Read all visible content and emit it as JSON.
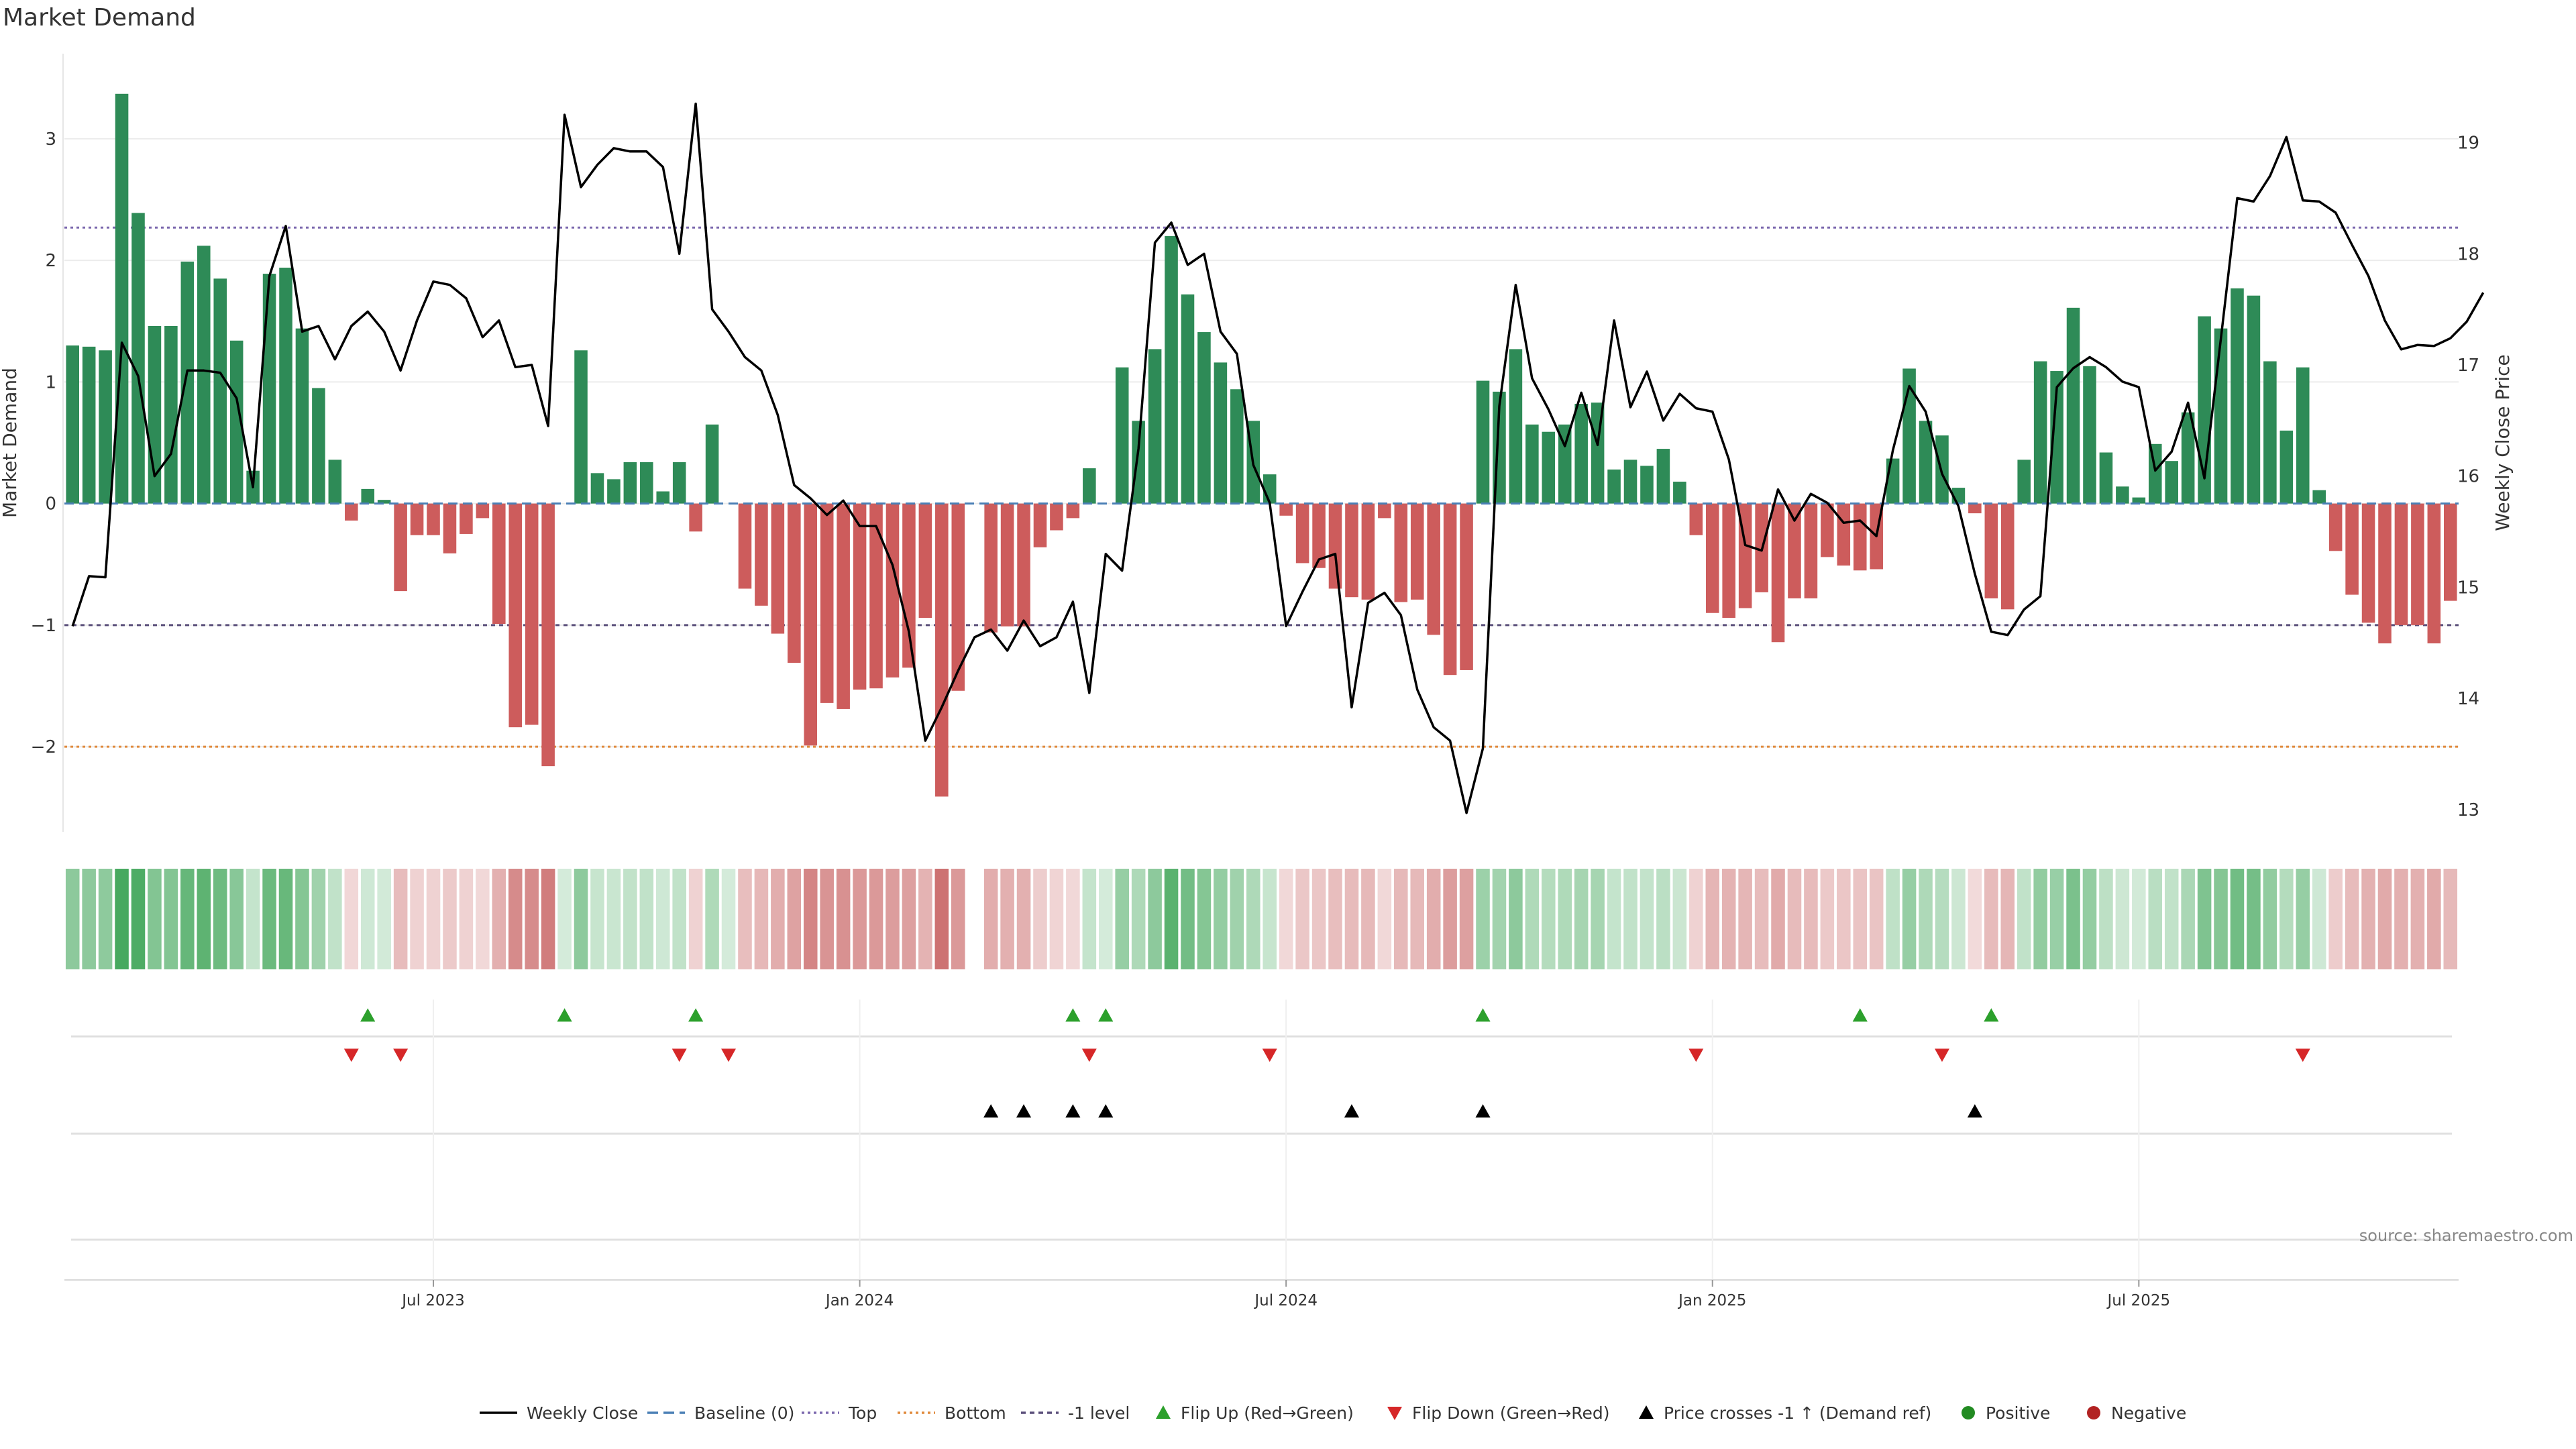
{
  "chart_data": {
    "type": "bar",
    "title": "Market Demand",
    "ylabel_left": "Market Demand",
    "ylabel_right": "Weekly Close Price",
    "source": "source: sharemaestro.com",
    "ylim_left": [
      -2.7,
      3.7
    ],
    "ylim_right": [
      12.8,
      19.8
    ],
    "yticks_left": [
      3,
      2,
      1,
      0,
      -1,
      -2
    ],
    "yticks_left_labels": [
      "3",
      "2",
      "1",
      "0",
      "−1",
      "−2"
    ],
    "yticks_right": [
      19,
      18,
      17,
      16,
      15,
      14,
      13
    ],
    "yticks_right_labels": [
      "19",
      "18",
      "17",
      "16",
      "15",
      "14",
      "13"
    ],
    "reference_lines": {
      "baseline": 0,
      "top": 2.27,
      "bottom": -2.0,
      "minus_one": -1.0
    },
    "x_tick_labels": [
      "Jul 2023",
      "Jan 2024",
      "Jul 2024",
      "Jan 2025",
      "Jul 2025"
    ],
    "x_tick_weeks": [
      22,
      48,
      74,
      100,
      126
    ],
    "colors": {
      "positive_bar": "#2e8b57",
      "negative_bar": "#cd5c5c",
      "price_line": "#000000",
      "baseline": "#4a7fb5",
      "top": "#7b68ae",
      "bottom": "#e08a3c",
      "minus_one": "#5a4f7a",
      "flip_up": "#2ca02c",
      "flip_down": "#d62728",
      "cross": "#000000",
      "positive_dot": "#228b22",
      "negative_dot": "#b22222",
      "heat_pos": "#3da456",
      "heat_neg": "#c86464"
    },
    "demand": [
      1.3,
      1.29,
      1.26,
      3.37,
      2.39,
      1.46,
      1.46,
      1.99,
      2.12,
      1.85,
      1.34,
      0.27,
      1.89,
      1.94,
      1.44,
      0.95,
      0.36,
      -0.14,
      0.12,
      0.03,
      -0.72,
      -0.26,
      -0.26,
      -0.41,
      -0.25,
      -0.12,
      -0.99,
      -1.84,
      -1.82,
      -2.16,
      0.0,
      1.26,
      0.25,
      0.2,
      0.34,
      0.34,
      0.1,
      0.34,
      -0.23,
      0.65,
      0.0,
      -0.7,
      -0.84,
      -1.07,
      -1.31,
      -1.99,
      -1.64,
      -1.69,
      -1.53,
      -1.52,
      -1.43,
      -1.35,
      -0.94,
      -2.41,
      -1.54,
      0.0,
      -1.06,
      -1.01,
      -1.01,
      -0.36,
      -0.22,
      -0.12,
      0.29,
      0.0,
      1.12,
      0.68,
      1.27,
      2.2,
      1.72,
      1.41,
      1.16,
      0.94,
      0.68,
      0.24,
      -0.1,
      -0.49,
      -0.53,
      -0.7,
      -0.77,
      -0.79,
      -0.12,
      -0.81,
      -0.79,
      -1.08,
      -1.41,
      -1.37,
      1.01,
      0.92,
      1.27,
      0.65,
      0.59,
      0.65,
      0.82,
      0.83,
      0.28,
      0.36,
      0.31,
      0.45,
      0.18,
      -0.26,
      -0.9,
      -0.94,
      -0.86,
      -0.73,
      -1.14,
      -0.78,
      -0.78,
      -0.44,
      -0.51,
      -0.55,
      -0.54,
      0.37,
      1.11,
      0.68,
      0.56,
      0.13,
      -0.08,
      -0.78,
      -0.87,
      0.36,
      1.17,
      1.09,
      1.61,
      1.13,
      0.42,
      0.14,
      0.05,
      0.49,
      0.35,
      0.75,
      1.54,
      1.44,
      1.77,
      1.71,
      1.17,
      0.6,
      1.12,
      0.11,
      -0.39,
      -0.75,
      -0.98,
      -1.15,
      -1.0,
      -1.0,
      -1.15,
      -0.8
    ],
    "price": [
      14.65,
      15.1,
      15.09,
      17.2,
      16.9,
      16,
      16.2,
      16.95,
      16.95,
      16.93,
      16.7,
      15.9,
      17.8,
      18.25,
      17.3,
      17.35,
      17.05,
      17.35,
      17.48,
      17.3,
      16.95,
      17.4,
      17.75,
      17.72,
      17.6,
      17.25,
      17.4,
      16.98,
      17.0,
      16.45,
      19.25,
      18.6,
      18.8,
      18.95,
      18.92,
      18.92,
      18.78,
      18.0,
      19.35,
      17.5,
      17.3,
      17.07,
      16.95,
      16.55,
      15.92,
      15.8,
      15.65,
      15.78,
      15.55,
      15.55,
      15.2,
      14.6,
      13.62,
      13.92,
      14.25,
      14.55,
      14.62,
      14.43,
      14.7,
      14.47,
      14.55,
      14.87,
      14.05,
      15.3,
      15.15,
      16.25,
      18.1,
      18.28,
      17.9,
      18.0,
      17.3,
      17.1,
      16.1,
      15.76,
      14.65,
      14.96,
      15.25,
      15.3,
      13.92,
      14.86,
      14.95,
      14.75,
      14.08,
      13.74,
      13.62,
      12.97,
      13.55,
      16.63,
      17.72,
      16.88,
      16.6,
      16.27,
      16.75,
      16.28,
      17.4,
      16.62,
      16.94,
      16.5,
      16.74,
      16.61,
      16.58,
      16.15,
      15.38,
      15.33,
      15.88,
      15.6,
      15.84,
      15.76,
      15.58,
      15.6,
      15.46,
      16.23,
      16.81,
      16.58,
      16.02,
      15.73,
      15.12,
      14.6,
      14.57,
      14.8,
      14.92,
      16.8,
      16.97,
      17.07,
      16.98,
      16.85,
      16.8,
      16.05,
      16.22,
      16.66,
      15.98,
      17.23,
      18.5,
      18.47,
      18.7,
      19.05,
      18.48,
      18.47,
      18.37,
      18.08,
      17.8,
      17.4,
      17.14,
      17.18,
      17.17,
      17.24,
      17.39,
      17.65
    ],
    "heatmap_gap_weeks": [
      55
    ],
    "flip_up_weeks": [
      18,
      30,
      38,
      61,
      63,
      86,
      109,
      117
    ],
    "flip_down_weeks": [
      17,
      20,
      37,
      40,
      62,
      73,
      99,
      114,
      136
    ],
    "price_cross_weeks": [
      56,
      58,
      61,
      63,
      78,
      86,
      116
    ],
    "legend": [
      {
        "label": "Weekly Close",
        "marker": "line"
      },
      {
        "label": "Baseline (0)",
        "marker": "dash-blue"
      },
      {
        "label": "Top",
        "marker": "dot-purple"
      },
      {
        "label": "Bottom",
        "marker": "dot-orange"
      },
      {
        "label": "-1 level",
        "marker": "dash-purple"
      },
      {
        "label": "Flip Up (Red→Green)",
        "marker": "tri-up-green"
      },
      {
        "label": "Flip Down (Green→Red)",
        "marker": "tri-down-red"
      },
      {
        "label": "Price crosses -1 ↑ (Demand ref)",
        "marker": "tri-up-black"
      },
      {
        "label": "Positive",
        "marker": "dot-green"
      },
      {
        "label": "Negative",
        "marker": "dot-red"
      }
    ]
  }
}
